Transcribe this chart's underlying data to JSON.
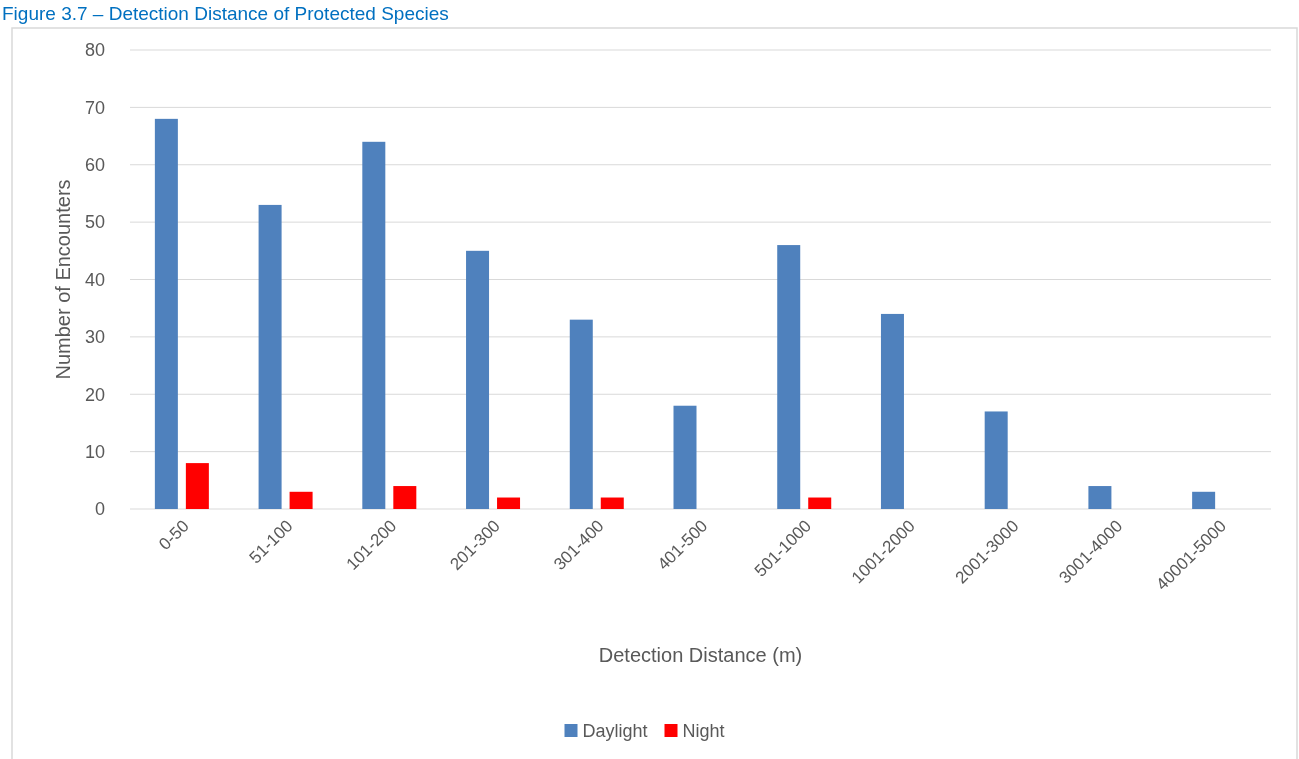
{
  "chart_data": {
    "type": "bar",
    "title": "Figure 3.7 – Detection Distance of Protected Species",
    "xlabel": "Detection Distance (m)",
    "ylabel": "Number of Encounters",
    "categories": [
      "0-50",
      "51-100",
      "101-200",
      "201-300",
      "301-400",
      "401-500",
      "501-1000",
      "1001-2000",
      "2001-3000",
      "3001-4000",
      "40001-5000"
    ],
    "series": [
      {
        "name": "Daylight",
        "color": "#4f81bd",
        "values": [
          68,
          53,
          64,
          45,
          33,
          18,
          46,
          34,
          17,
          4,
          3
        ]
      },
      {
        "name": "Night",
        "color": "#ff0000",
        "values": [
          8,
          3,
          4,
          2,
          2,
          0,
          2,
          0,
          0,
          0,
          0
        ]
      }
    ],
    "ylim": [
      0,
      80
    ],
    "yticks": [
      0,
      10,
      20,
      30,
      40,
      50,
      60,
      70,
      80
    ],
    "grid": "y",
    "legend": "bottom"
  }
}
